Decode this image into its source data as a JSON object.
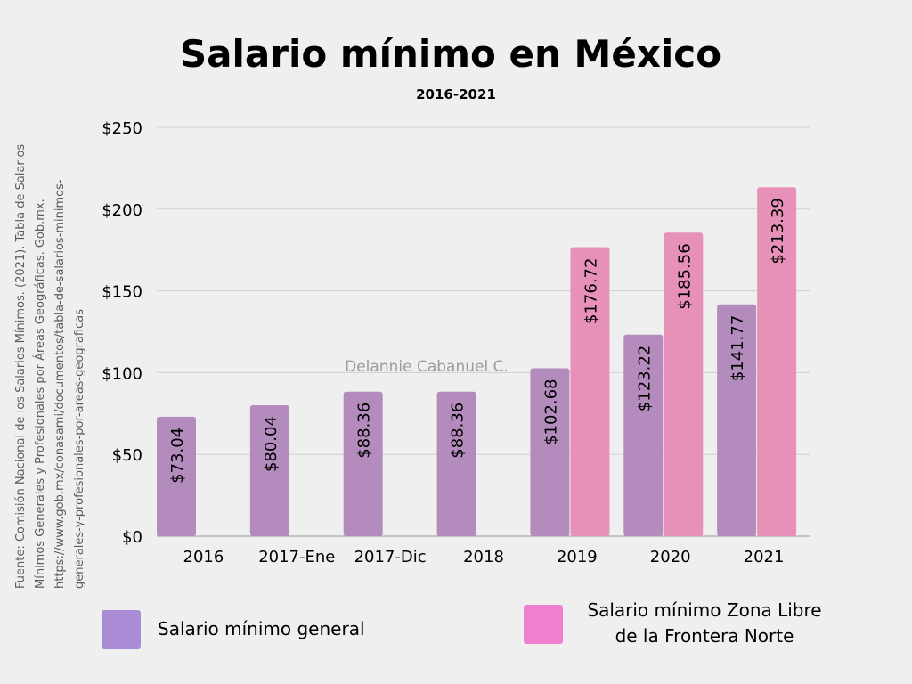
{
  "chart_data": {
    "type": "bar",
    "title": "Salario mínimo en México",
    "subtitle": "2016-2021",
    "categories": [
      "2016",
      "2017-Ene",
      "2017-Dic",
      "2018",
      "2019",
      "2020",
      "2021"
    ],
    "series": [
      {
        "name": "Salario mínimo general",
        "color": "#b48bbd",
        "legend_color": "#a98bd6",
        "values": [
          73.04,
          80.04,
          88.36,
          88.36,
          102.68,
          123.22,
          141.77
        ],
        "labels": [
          "$73.04",
          "$80.04",
          "$88.36",
          "$88.36",
          "$102.68",
          "$123.22",
          "$141.77"
        ]
      },
      {
        "name_lines": [
          "Salario mínimo Zona Libre",
          "de la Frontera Norte"
        ],
        "color": "#e891b8",
        "legend_color": "#f07fcf",
        "values": [
          null,
          null,
          null,
          null,
          176.72,
          185.56,
          213.39
        ],
        "labels": [
          null,
          null,
          null,
          null,
          "$176.72",
          "$185.56",
          "$213.39"
        ]
      }
    ],
    "ylim": [
      0,
      250
    ],
    "yticks": [
      0,
      50,
      100,
      150,
      200,
      250
    ],
    "ytick_labels": [
      "$0",
      "$50",
      "$100",
      "$150",
      "$200",
      "$250"
    ],
    "grid": true,
    "legend_position": "bottom",
    "watermark": "Delannie Cabanuel C.",
    "source_lines": [
      "Fuente: Comisión Nacional de los Salarios Mínimos. (2021). Tabla de Salarios",
      "Mínimos Generales y Profesionales por Áreas Geográficas. Gob.mx.",
      "https://www.gob.mx/conasami/documentos/tabla-de-salarios-minimos-",
      "generales-y-profesionales-por-areas-geograficas"
    ]
  }
}
